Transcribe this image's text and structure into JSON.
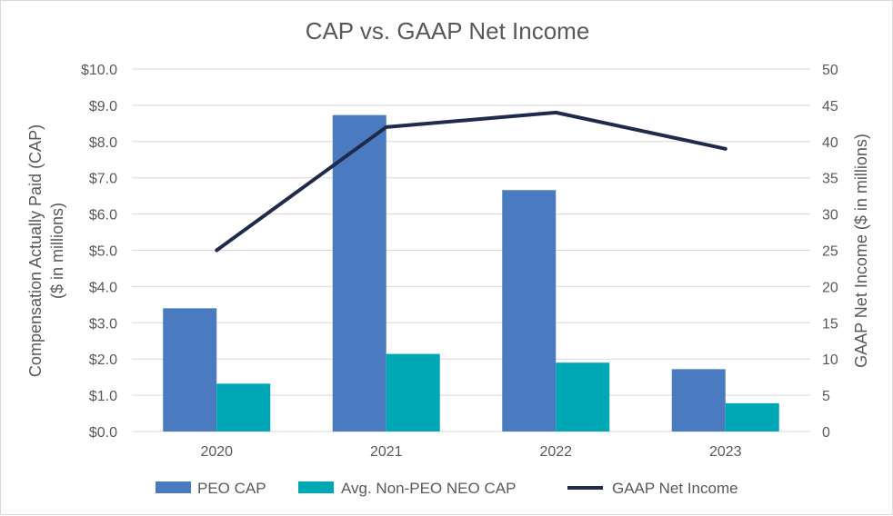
{
  "chart_data": {
    "type": "bar",
    "title": "CAP vs. GAAP Net Income",
    "categories": [
      "2020",
      "2021",
      "2022",
      "2023"
    ],
    "series": [
      {
        "name": "PEO CAP",
        "kind": "bar",
        "axis": "left",
        "color": "#4a7abf",
        "values": [
          3.4,
          8.73,
          6.66,
          1.72
        ]
      },
      {
        "name": "Avg. Non-PEO NEO CAP",
        "kind": "bar",
        "axis": "left",
        "color": "#00a7b5",
        "values": [
          1.32,
          2.14,
          1.9,
          0.78
        ]
      },
      {
        "name": "GAAP Net Income",
        "kind": "line",
        "axis": "right",
        "color": "#1f2a4d",
        "values": [
          25,
          42,
          44,
          39
        ]
      }
    ],
    "y_left": {
      "label_line1": "Compensation Actually Paid (CAP)",
      "label_line2": "($ in millions)",
      "ticks": [
        "$0.0",
        "$1.0",
        "$2.0",
        "$3.0",
        "$4.0",
        "$5.0",
        "$6.0",
        "$7.0",
        "$8.0",
        "$9.0",
        "$10.0"
      ],
      "ylim": [
        0,
        10
      ]
    },
    "y_right": {
      "label": "GAAP Net Income ($ in millions)",
      "ticks": [
        "0",
        "5",
        "10",
        "15",
        "20",
        "25",
        "30",
        "35",
        "40",
        "45",
        "50"
      ],
      "ylim": [
        0,
        50
      ]
    },
    "grid": true,
    "legend_position": "bottom"
  }
}
